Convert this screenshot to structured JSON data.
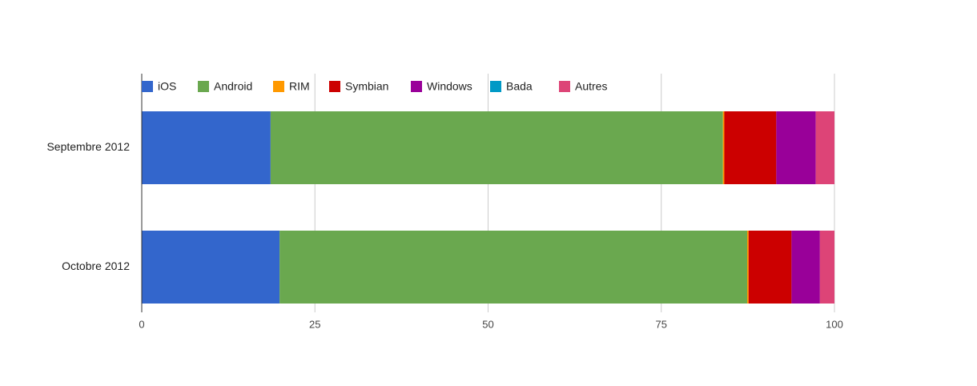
{
  "chart_data": {
    "type": "stacked-bar-horizontal",
    "categories": [
      "Septembre 2012",
      "Octobre 2012"
    ],
    "series": [
      {
        "name": "iOS",
        "color": "#3366cc",
        "values": [
          18.6,
          19.9
        ]
      },
      {
        "name": "Android",
        "color": "#6aa84f",
        "values": [
          65.3,
          67.5
        ]
      },
      {
        "name": "RIM",
        "color": "#ff9900",
        "values": [
          0.2,
          0.2
        ]
      },
      {
        "name": "Symbian",
        "color": "#cc0000",
        "values": [
          7.5,
          6.2
        ]
      },
      {
        "name": "Windows",
        "color": "#990099",
        "values": [
          5.7,
          4.1
        ]
      },
      {
        "name": "Bada",
        "color": "#0099c6",
        "values": [
          0,
          0
        ]
      },
      {
        "name": "Autres",
        "color": "#dd4477",
        "values": [
          2.7,
          2.1
        ]
      }
    ],
    "xlim": [
      0,
      100
    ],
    "xticks": [
      0,
      25,
      50,
      75,
      100
    ],
    "grid": true,
    "legend": "top"
  }
}
